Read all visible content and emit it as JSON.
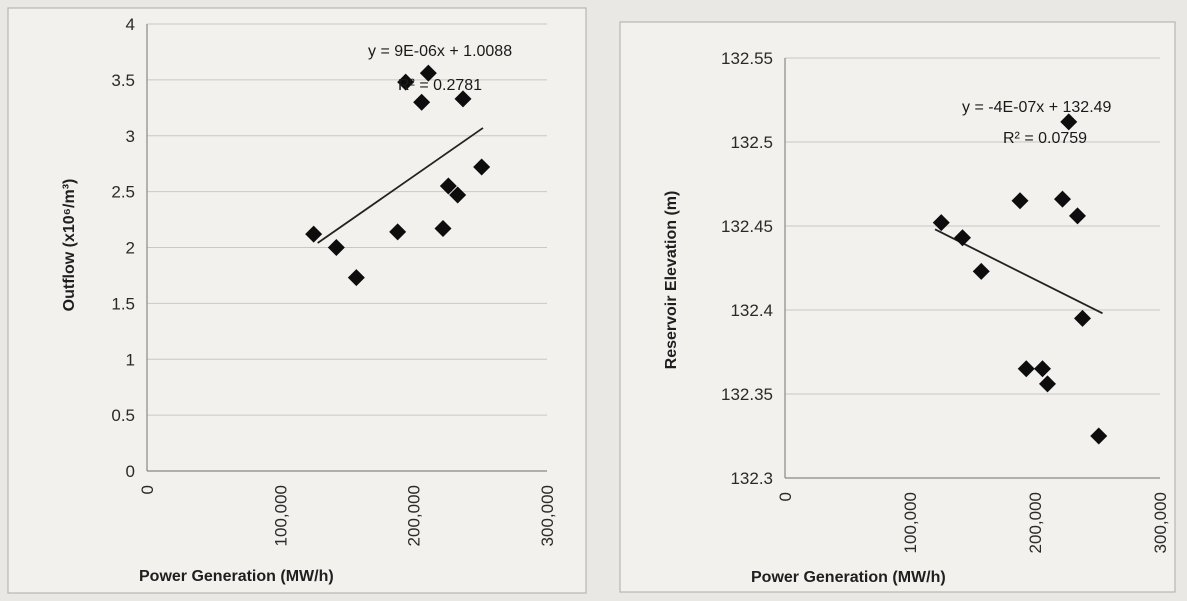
{
  "chart_data": [
    {
      "type": "scatter",
      "xlabel": "Power Generation (MW/h)",
      "ylabel": "Outflow (x10⁶/m³)",
      "xlim": [
        0,
        300000
      ],
      "ylim": [
        0,
        4
      ],
      "x_ticks": [
        "0",
        "100,000",
        "200,000",
        "300,000"
      ],
      "y_ticks": [
        "0",
        "0.5",
        "1",
        "1.5",
        "2",
        "2.5",
        "3",
        "3.5",
        "4"
      ],
      "grid": true,
      "points": [
        {
          "x": 125000,
          "y": 2.12
        },
        {
          "x": 142000,
          "y": 2.0
        },
        {
          "x": 157000,
          "y": 1.73
        },
        {
          "x": 188000,
          "y": 2.14
        },
        {
          "x": 194000,
          "y": 3.48
        },
        {
          "x": 206000,
          "y": 3.3
        },
        {
          "x": 211000,
          "y": 3.56
        },
        {
          "x": 222000,
          "y": 2.17
        },
        {
          "x": 226000,
          "y": 2.55
        },
        {
          "x": 233000,
          "y": 2.47
        },
        {
          "x": 237000,
          "y": 3.33
        },
        {
          "x": 251000,
          "y": 2.72
        }
      ],
      "trendline": {
        "x": [
          128000,
          252000
        ],
        "y": [
          2.04,
          3.07
        ]
      },
      "equation": "y = 9E-06x + 1.0088",
      "r_squared": "R² = 0.2781"
    },
    {
      "type": "scatter",
      "xlabel": "Power Generation (MW/h)",
      "ylabel": "Reservoir Elevation (m)",
      "xlim": [
        0,
        300000
      ],
      "ylim": [
        132.3,
        132.55
      ],
      "x_ticks": [
        "0",
        "100,000",
        "200,000",
        "300,000"
      ],
      "y_ticks": [
        "132.3",
        "132.35",
        "132.4",
        "132.45",
        "132.5",
        "132.55"
      ],
      "grid": true,
      "points": [
        {
          "x": 125000,
          "y": 132.452
        },
        {
          "x": 142000,
          "y": 132.443
        },
        {
          "x": 157000,
          "y": 132.423
        },
        {
          "x": 188000,
          "y": 132.465
        },
        {
          "x": 193000,
          "y": 132.365
        },
        {
          "x": 206000,
          "y": 132.365
        },
        {
          "x": 210000,
          "y": 132.356
        },
        {
          "x": 222000,
          "y": 132.466
        },
        {
          "x": 227000,
          "y": 132.512
        },
        {
          "x": 234000,
          "y": 132.456
        },
        {
          "x": 238000,
          "y": 132.395
        },
        {
          "x": 251000,
          "y": 132.325
        }
      ],
      "trendline": {
        "x": [
          120000,
          254000
        ],
        "y": [
          132.448,
          132.398
        ]
      },
      "equation": "y = -4E-07x + 132.49",
      "r_squared": "R² = 0.0759"
    }
  ]
}
